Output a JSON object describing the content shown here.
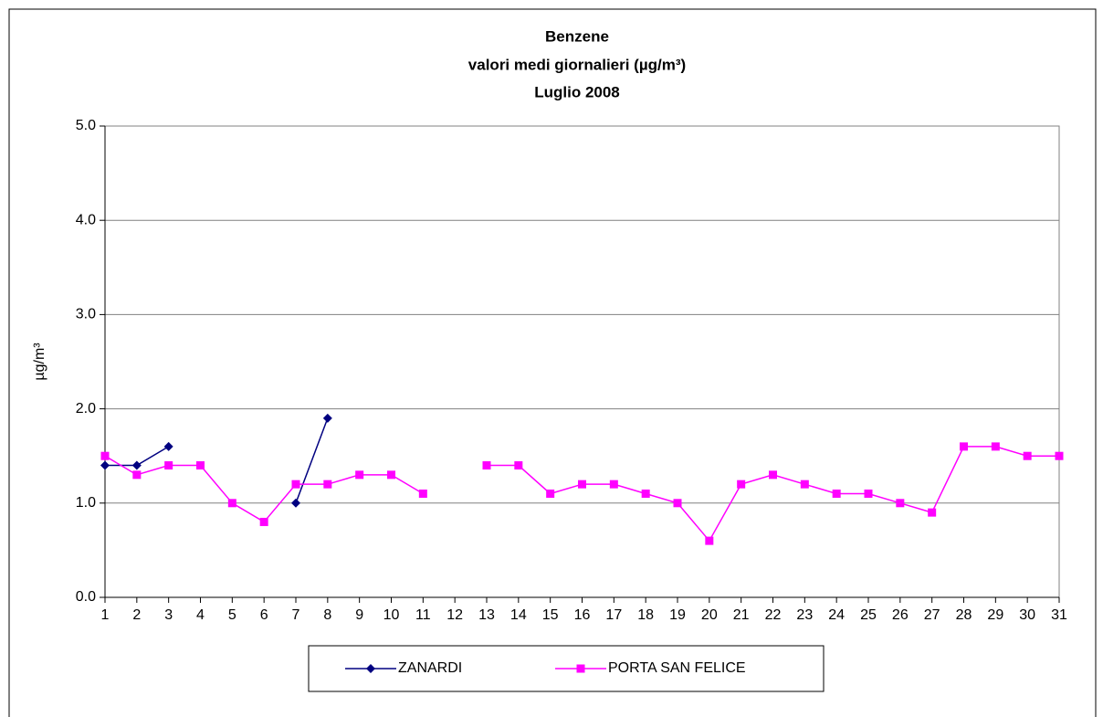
{
  "chart_data": {
    "type": "line",
    "title": [
      "Benzene",
      "valori medi giornalieri (µg/m³)",
      "Luglio 2008"
    ],
    "y_label": "µg/m³",
    "x": [
      1,
      2,
      3,
      4,
      5,
      6,
      7,
      8,
      9,
      10,
      11,
      12,
      13,
      14,
      15,
      16,
      17,
      18,
      19,
      20,
      21,
      22,
      23,
      24,
      25,
      26,
      27,
      28,
      29,
      30,
      31
    ],
    "xlim": [
      1,
      31
    ],
    "xticks": [
      1,
      2,
      3,
      4,
      5,
      6,
      7,
      8,
      9,
      10,
      11,
      12,
      13,
      14,
      15,
      16,
      17,
      18,
      19,
      20,
      21,
      22,
      23,
      24,
      25,
      26,
      27,
      28,
      29,
      30,
      31
    ],
    "ylim": [
      0,
      5
    ],
    "yticks": [
      {
        "value": 0,
        "label": "0.0"
      },
      {
        "value": 1,
        "label": "1.0"
      },
      {
        "value": 2,
        "label": "2.0"
      },
      {
        "value": 3,
        "label": "3.0"
      },
      {
        "value": 4,
        "label": "4.0"
      },
      {
        "value": 5,
        "label": "5.0"
      }
    ],
    "grid": true,
    "legend": "bottom",
    "series": [
      {
        "name": "ZANARDI",
        "color": "#000080",
        "marker": "diamond",
        "values": [
          1.4,
          1.4,
          1.6,
          null,
          null,
          null,
          1.0,
          1.9,
          null,
          null,
          null,
          null,
          null,
          null,
          null,
          null,
          null,
          null,
          null,
          null,
          null,
          null,
          null,
          null,
          null,
          null,
          null,
          null,
          null,
          null,
          null
        ]
      },
      {
        "name": "PORTA SAN FELICE",
        "color": "#ff00ff",
        "marker": "square",
        "values": [
          1.5,
          1.3,
          1.4,
          1.4,
          1.0,
          0.8,
          1.2,
          1.2,
          1.3,
          1.3,
          1.1,
          null,
          1.4,
          1.4,
          1.1,
          1.2,
          1.2,
          1.1,
          1.0,
          0.6,
          1.2,
          1.3,
          1.2,
          1.1,
          1.1,
          1.0,
          0.9,
          1.6,
          1.6,
          1.5,
          1.5
        ]
      }
    ]
  }
}
